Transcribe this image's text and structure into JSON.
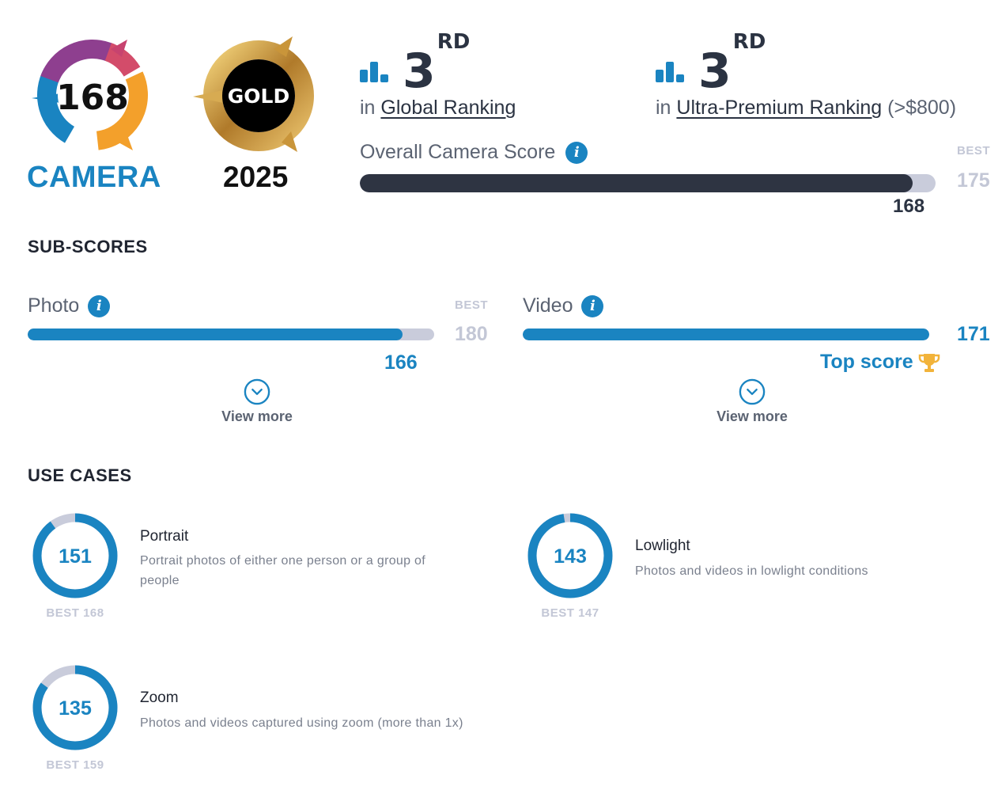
{
  "badge": {
    "score": "168",
    "label": "CAMERA",
    "award": "GOLD",
    "year": "2025",
    "colors": {
      "blue": "#1a84c1",
      "orange": "#f3a02b",
      "magenta": "#b8427a",
      "gold": "#c99a3a"
    }
  },
  "rankings": [
    {
      "rank": "3",
      "suffix": "RD",
      "prefix": "in",
      "link": "Global Ranking",
      "suffix_text": ""
    },
    {
      "rank": "3",
      "suffix": "RD",
      "prefix": "in",
      "link": "Ultra-Premium Ranking",
      "suffix_text": "(>$800)"
    }
  ],
  "overall": {
    "label": "Overall Camera Score",
    "best_label": "BEST",
    "best": "175",
    "score": "168",
    "fraction": 0.96,
    "bar_color": "#2e3442"
  },
  "subscores": {
    "title": "SUB-SCORES",
    "photo": {
      "label": "Photo",
      "best_label": "BEST",
      "best": "180",
      "score": "166",
      "fraction": 0.922,
      "view_more": "View more"
    },
    "video": {
      "label": "Video",
      "score": "171",
      "top_label": "Top score",
      "fraction": 1.0,
      "view_more": "View more"
    }
  },
  "use_cases": {
    "title": "USE CASES",
    "items": [
      {
        "name": "Portrait",
        "score": "151",
        "best": "BEST 168",
        "fraction": 0.899,
        "desc": [
          "Portrait photos of either one person or a group of",
          "people"
        ]
      },
      {
        "name": "Lowlight",
        "score": "143",
        "best": "BEST 147",
        "fraction": 0.973,
        "desc": [
          "Photos and videos in lowlight conditions"
        ]
      },
      {
        "name": "Zoom",
        "score": "135",
        "best": "BEST 159",
        "fraction": 0.849,
        "desc": [
          "Photos and videos captured using zoom (more than 1x)"
        ]
      }
    ]
  }
}
